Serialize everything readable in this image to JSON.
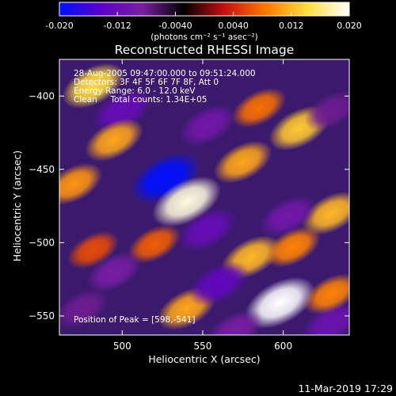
{
  "chart_data": {
    "type": "heatmap",
    "title": "Reconstructed RHESSI Image",
    "xlabel": "Heliocentric X (arcsec)",
    "ylabel": "Heliocentric Y (arcsec)",
    "xlim": [
      461,
      641
    ],
    "ylim": [
      -563,
      -375
    ],
    "x_ticks": [
      500,
      550,
      600
    ],
    "y_ticks": [
      -400,
      -450,
      -500,
      -550
    ],
    "colorbar": {
      "range": [
        -0.02,
        0.02
      ],
      "ticks": [
        "-0.020",
        "-0.012",
        "-0.0040",
        "0.0040",
        "0.012",
        "0.020"
      ],
      "unit_label": "(photons cm⁻² s⁻¹ asec⁻²)",
      "colors": [
        "#0010ff",
        "#5a00c8",
        "#7a1fa0",
        "#000000",
        "#c81010",
        "#ff7a00",
        "#ffe040",
        "#ffffff"
      ]
    },
    "annotations": [
      "28-Aug-2005 09:47:00.000 to 09:51:24.000",
      "Detectors: 3F 4F 5F 6F 7F 8F, Att 0",
      "Energy Range: 6.0 - 12.0 keV",
      "Clean     Total counts: 1.34E+05"
    ],
    "peak_label": "Position of Peak = [598,-541]",
    "peak": [
      598,
      -541
    ],
    "blobs": [
      {
        "x": 527,
        "y": -456,
        "value": -0.02
      },
      {
        "x": 540,
        "y": -472,
        "value": 0.019
      },
      {
        "x": 598,
        "y": -541,
        "value": 0.02
      },
      {
        "x": 610,
        "y": -422,
        "value": 0.013
      },
      {
        "x": 482,
        "y": -393,
        "value": 0.014
      },
      {
        "x": 470,
        "y": -460,
        "value": 0.01
      },
      {
        "x": 500,
        "y": -410,
        "value": -0.012
      },
      {
        "x": 553,
        "y": -420,
        "value": -0.01
      },
      {
        "x": 585,
        "y": -408,
        "value": 0.008
      },
      {
        "x": 630,
        "y": -410,
        "value": -0.008
      },
      {
        "x": 630,
        "y": -480,
        "value": 0.012
      },
      {
        "x": 603,
        "y": -482,
        "value": -0.01
      },
      {
        "x": 575,
        "y": -445,
        "value": 0.011
      },
      {
        "x": 553,
        "y": -491,
        "value": -0.012
      },
      {
        "x": 520,
        "y": -501,
        "value": 0.007
      },
      {
        "x": 580,
        "y": -510,
        "value": 0.012
      },
      {
        "x": 606,
        "y": -503,
        "value": 0.009
      },
      {
        "x": 495,
        "y": -520,
        "value": -0.009
      },
      {
        "x": 540,
        "y": -545,
        "value": 0.011
      },
      {
        "x": 482,
        "y": -505,
        "value": 0.006
      },
      {
        "x": 560,
        "y": -528,
        "value": -0.013
      },
      {
        "x": 630,
        "y": -555,
        "value": -0.011
      },
      {
        "x": 475,
        "y": -545,
        "value": -0.008
      },
      {
        "x": 630,
        "y": -535,
        "value": 0.009
      },
      {
        "x": 570,
        "y": -560,
        "value": -0.009
      },
      {
        "x": 495,
        "y": -430,
        "value": 0.011
      }
    ]
  },
  "footer": {
    "timestamp": "11-Mar-2019 17:29"
  }
}
